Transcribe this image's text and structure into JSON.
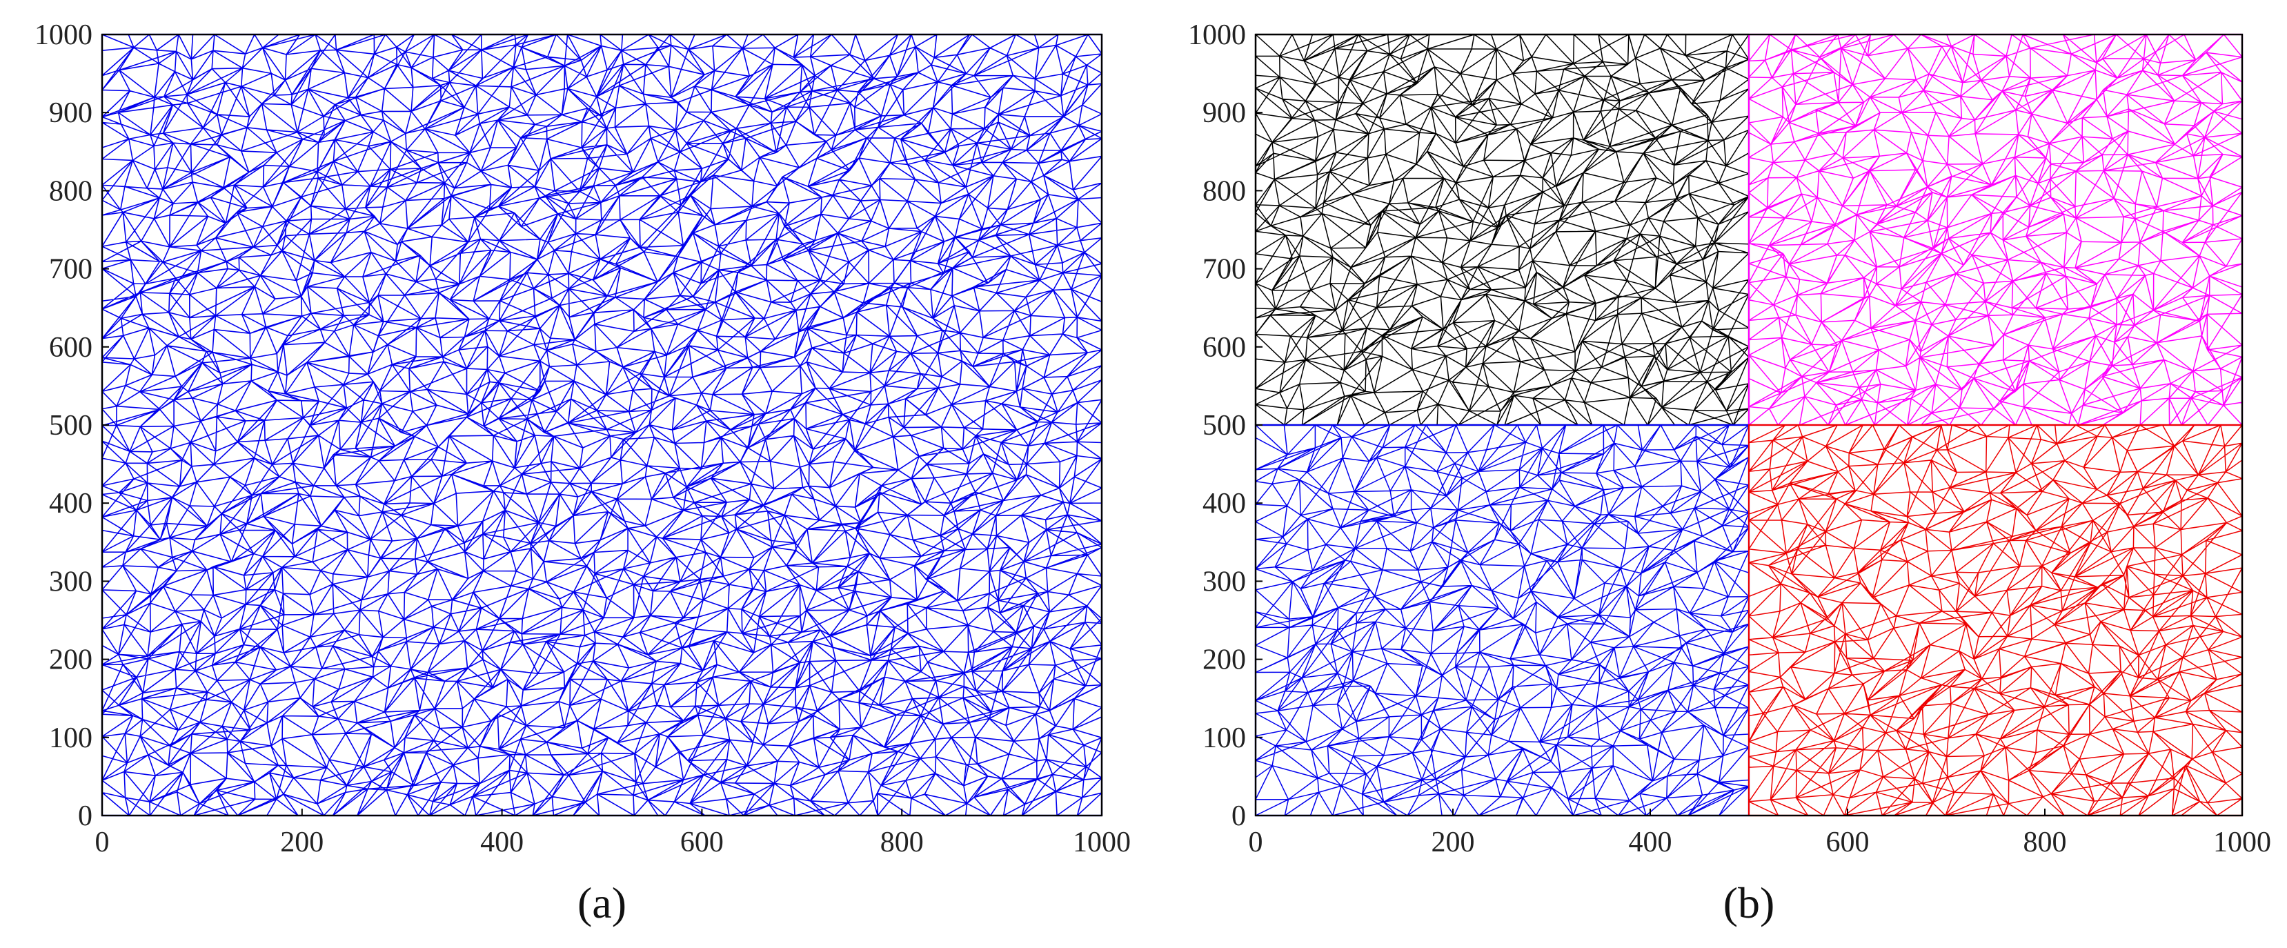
{
  "chart_data": [
    {
      "type": "network",
      "panel_label": "(a)",
      "xlim": [
        0,
        1000
      ],
      "ylim": [
        0,
        1000
      ],
      "xticks": [
        0,
        200,
        400,
        600,
        800,
        1000
      ],
      "yticks": [
        0,
        100,
        200,
        300,
        400,
        500,
        600,
        700,
        800,
        900,
        1000
      ],
      "grid": false,
      "series": [
        {
          "region": "whole area 0-1000 x 0-1000",
          "color": "#0000ee"
        }
      ]
    },
    {
      "type": "network",
      "panel_label": "(b)",
      "xlim": [
        0,
        1000
      ],
      "ylim": [
        0,
        1000
      ],
      "xticks": [
        0,
        200,
        400,
        600,
        800,
        1000
      ],
      "yticks": [
        0,
        100,
        200,
        300,
        400,
        500,
        600,
        700,
        800,
        900,
        1000
      ],
      "grid": false,
      "series": [
        {
          "region": "x 0-500, y 500-1000",
          "color": "#000000"
        },
        {
          "region": "x 500-1000, y 500-1000",
          "color": "#ff00ff"
        },
        {
          "region": "x 0-500, y 0-500",
          "color": "#0000ee"
        },
        {
          "region": "x 500-1000, y 0-500",
          "color": "#ee0000"
        }
      ]
    }
  ]
}
